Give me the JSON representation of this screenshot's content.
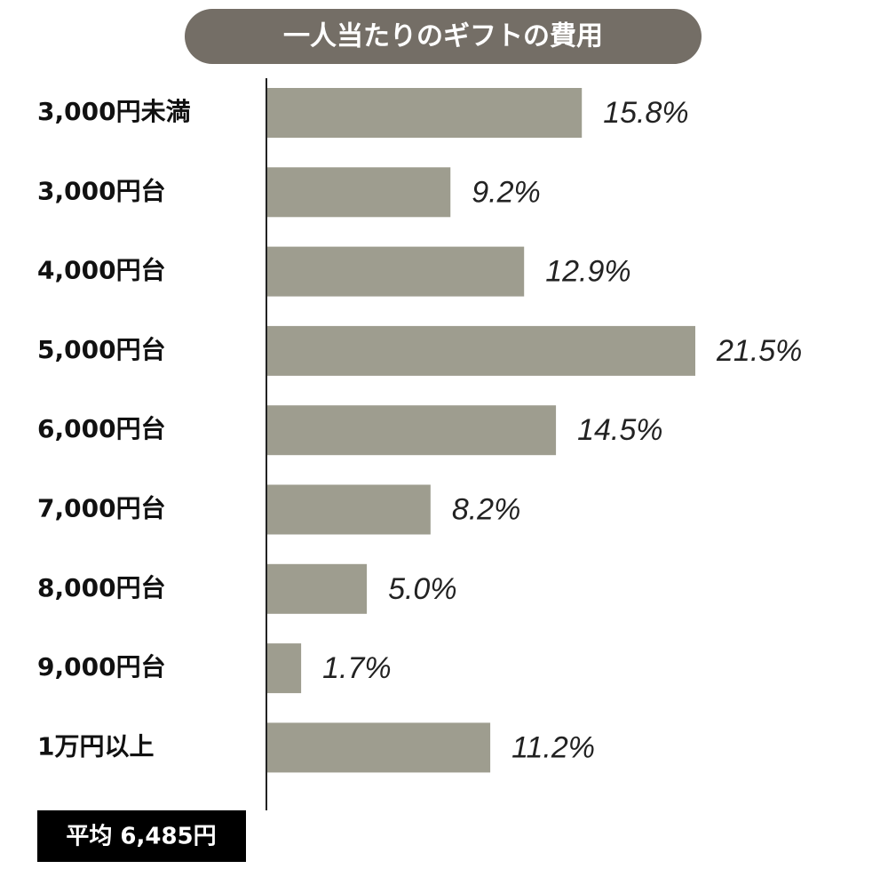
{
  "chart_data": {
    "type": "hbar",
    "title": "一人当たりのギフトの費用",
    "categories": [
      "3,000円未満",
      "3,000円台",
      "4,000円台",
      "5,000円台",
      "6,000円台",
      "7,000円台",
      "8,000円台",
      "9,000円台",
      "1万円以上"
    ],
    "values": [
      15.8,
      9.2,
      12.9,
      21.5,
      14.5,
      8.2,
      5.0,
      1.7,
      11.2
    ],
    "value_labels": [
      "15.8%",
      "9.2%",
      "12.9%",
      "21.5%",
      "14.5%",
      "8.2%",
      "5.0%",
      "1.7%",
      "11.2%"
    ],
    "color": "#9e9d8f",
    "note": "平均 6,485円"
  }
}
